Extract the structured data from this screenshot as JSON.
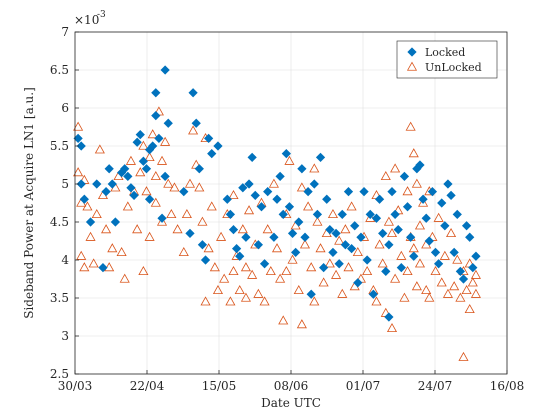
{
  "chart_data": {
    "type": "scatter",
    "title": "",
    "xlabel": "Date UTC",
    "ylabel": "Sideband Power at Acquire LN1 [a.u.]",
    "y_exponent_label": "×10",
    "y_exponent_power": "-3",
    "x_ticks": [
      "30/03",
      "22/04",
      "15/05",
      "08/06",
      "01/07",
      "24/07",
      "16/08"
    ],
    "y_ticks": [
      "2.5",
      "3",
      "3.5",
      "4",
      "4.5",
      "5",
      "5.5",
      "6",
      "6.5",
      "7"
    ],
    "xlim": [
      "2021-03-30",
      "2021-08-16"
    ],
    "ylim": [
      2.5,
      7
    ],
    "grid": true,
    "legend_position": "top-right",
    "series": [
      {
        "name": "Locked",
        "marker": "diamond",
        "color": "#0072BD",
        "points": [
          [
            "2021-03-31",
            5.6
          ],
          [
            "2021-04-01",
            5.5
          ],
          [
            "2021-04-01",
            5.0
          ],
          [
            "2021-04-02",
            4.8
          ],
          [
            "2021-04-04",
            4.5
          ],
          [
            "2021-04-06",
            5.0
          ],
          [
            "2021-04-08",
            3.9
          ],
          [
            "2021-04-09",
            4.9
          ],
          [
            "2021-04-10",
            5.2
          ],
          [
            "2021-04-11",
            5.0
          ],
          [
            "2021-04-12",
            4.5
          ],
          [
            "2021-04-14",
            5.15
          ],
          [
            "2021-04-15",
            5.2
          ],
          [
            "2021-04-16",
            5.1
          ],
          [
            "2021-04-17",
            4.95
          ],
          [
            "2021-04-18",
            4.85
          ],
          [
            "2021-04-19",
            5.55
          ],
          [
            "2021-04-20",
            5.65
          ],
          [
            "2021-04-21",
            5.3
          ],
          [
            "2021-04-22",
            5.2
          ],
          [
            "2021-04-23",
            4.8
          ],
          [
            "2021-04-23",
            5.45
          ],
          [
            "2021-04-24",
            5.5
          ],
          [
            "2021-04-25",
            5.9
          ],
          [
            "2021-04-25",
            6.2
          ],
          [
            "2021-04-26",
            5.6
          ],
          [
            "2021-04-27",
            4.55
          ],
          [
            "2021-04-28",
            6.5
          ],
          [
            "2021-04-28",
            5.1
          ],
          [
            "2021-04-29",
            5.8
          ],
          [
            "2021-05-04",
            4.9
          ],
          [
            "2021-05-06",
            4.35
          ],
          [
            "2021-05-07",
            6.2
          ],
          [
            "2021-05-08",
            5.8
          ],
          [
            "2021-05-09",
            5.2
          ],
          [
            "2021-05-10",
            4.2
          ],
          [
            "2021-05-11",
            4.0
          ],
          [
            "2021-05-12",
            5.6
          ],
          [
            "2021-05-13",
            5.4
          ],
          [
            "2021-05-15",
            5.5
          ],
          [
            "2021-05-18",
            4.8
          ],
          [
            "2021-05-19",
            4.6
          ],
          [
            "2021-05-20",
            4.4
          ],
          [
            "2021-05-21",
            4.15
          ],
          [
            "2021-05-22",
            4.05
          ],
          [
            "2021-05-23",
            4.95
          ],
          [
            "2021-05-24",
            4.3
          ],
          [
            "2021-05-25",
            5.0
          ],
          [
            "2021-05-26",
            5.35
          ],
          [
            "2021-05-27",
            4.85
          ],
          [
            "2021-05-28",
            4.2
          ],
          [
            "2021-05-29",
            4.7
          ],
          [
            "2021-05-30",
            3.95
          ],
          [
            "2021-05-31",
            4.9
          ],
          [
            "2021-06-02",
            4.3
          ],
          [
            "2021-06-03",
            4.8
          ],
          [
            "2021-06-04",
            5.1
          ],
          [
            "2021-06-05",
            4.6
          ],
          [
            "2021-06-06",
            5.4
          ],
          [
            "2021-06-07",
            4.7
          ],
          [
            "2021-06-08",
            4.35
          ],
          [
            "2021-06-09",
            4.1
          ],
          [
            "2021-06-10",
            4.5
          ],
          [
            "2021-06-11",
            5.2
          ],
          [
            "2021-06-12",
            4.3
          ],
          [
            "2021-06-13",
            4.9
          ],
          [
            "2021-06-14",
            3.55
          ],
          [
            "2021-06-15",
            5.0
          ],
          [
            "2021-06-16",
            4.6
          ],
          [
            "2021-06-17",
            5.35
          ],
          [
            "2021-06-18",
            3.9
          ],
          [
            "2021-06-19",
            4.8
          ],
          [
            "2021-06-20",
            4.4
          ],
          [
            "2021-06-21",
            4.1
          ],
          [
            "2021-06-22",
            4.35
          ],
          [
            "2021-06-23",
            3.95
          ],
          [
            "2021-06-24",
            4.6
          ],
          [
            "2021-06-25",
            4.2
          ],
          [
            "2021-06-26",
            4.9
          ],
          [
            "2021-06-27",
            4.15
          ],
          [
            "2021-06-28",
            4.45
          ],
          [
            "2021-06-29",
            3.7
          ],
          [
            "2021-06-30",
            4.3
          ],
          [
            "2021-07-01",
            4.9
          ],
          [
            "2021-07-02",
            4.0
          ],
          [
            "2021-07-03",
            4.6
          ],
          [
            "2021-07-04",
            3.55
          ],
          [
            "2021-07-05",
            4.55
          ],
          [
            "2021-07-06",
            4.8
          ],
          [
            "2021-07-07",
            4.35
          ],
          [
            "2021-07-08",
            3.85
          ],
          [
            "2021-07-09",
            4.2
          ],
          [
            "2021-07-09",
            3.25
          ],
          [
            "2021-07-10",
            4.9
          ],
          [
            "2021-07-11",
            4.6
          ],
          [
            "2021-07-12",
            4.4
          ],
          [
            "2021-07-13",
            3.9
          ],
          [
            "2021-07-14",
            5.1
          ],
          [
            "2021-07-15",
            4.7
          ],
          [
            "2021-07-16",
            4.3
          ],
          [
            "2021-07-17",
            4.05
          ],
          [
            "2021-07-18",
            5.2
          ],
          [
            "2021-07-19",
            5.25
          ],
          [
            "2021-07-20",
            4.8
          ],
          [
            "2021-07-21",
            4.55
          ],
          [
            "2021-07-22",
            4.25
          ],
          [
            "2021-07-23",
            4.9
          ],
          [
            "2021-07-24",
            4.1
          ],
          [
            "2021-07-25",
            3.95
          ],
          [
            "2021-07-26",
            4.75
          ],
          [
            "2021-07-27",
            4.45
          ],
          [
            "2021-07-28",
            5.0
          ],
          [
            "2021-07-29",
            4.85
          ],
          [
            "2021-07-30",
            4.1
          ],
          [
            "2021-07-31",
            4.6
          ],
          [
            "2021-08-01",
            3.85
          ],
          [
            "2021-08-02",
            3.75
          ],
          [
            "2021-08-03",
            4.45
          ],
          [
            "2021-08-04",
            4.3
          ],
          [
            "2021-08-05",
            3.9
          ],
          [
            "2021-08-06",
            4.05
          ]
        ]
      },
      {
        "name": "UnLocked",
        "marker": "triangle",
        "color": "#D95319",
        "points": [
          [
            "2021-03-31",
            5.75
          ],
          [
            "2021-03-31",
            5.15
          ],
          [
            "2021-04-01",
            4.75
          ],
          [
            "2021-04-01",
            4.05
          ],
          [
            "2021-04-02",
            5.05
          ],
          [
            "2021-04-02",
            3.9
          ],
          [
            "2021-04-03",
            4.7
          ],
          [
            "2021-04-04",
            4.3
          ],
          [
            "2021-04-05",
            3.95
          ],
          [
            "2021-04-06",
            4.6
          ],
          [
            "2021-04-07",
            5.45
          ],
          [
            "2021-04-08",
            4.85
          ],
          [
            "2021-04-09",
            4.4
          ],
          [
            "2021-04-10",
            3.9
          ],
          [
            "2021-04-11",
            4.15
          ],
          [
            "2021-04-12",
            4.95
          ],
          [
            "2021-04-13",
            5.1
          ],
          [
            "2021-04-14",
            4.1
          ],
          [
            "2021-04-15",
            3.75
          ],
          [
            "2021-04-16",
            4.7
          ],
          [
            "2021-04-17",
            5.3
          ],
          [
            "2021-04-18",
            4.9
          ],
          [
            "2021-04-19",
            4.4
          ],
          [
            "2021-04-20",
            5.15
          ],
          [
            "2021-04-21",
            5.5
          ],
          [
            "2021-04-21",
            3.85
          ],
          [
            "2021-04-22",
            4.9
          ],
          [
            "2021-04-23",
            5.35
          ],
          [
            "2021-04-23",
            4.3
          ],
          [
            "2021-04-24",
            5.65
          ],
          [
            "2021-04-25",
            5.1
          ],
          [
            "2021-04-25",
            4.75
          ],
          [
            "2021-04-26",
            5.95
          ],
          [
            "2021-04-27",
            5.3
          ],
          [
            "2021-04-27",
            4.5
          ],
          [
            "2021-04-28",
            5.55
          ],
          [
            "2021-04-29",
            5.0
          ],
          [
            "2021-04-30",
            4.6
          ],
          [
            "2021-05-01",
            4.95
          ],
          [
            "2021-05-02",
            4.4
          ],
          [
            "2021-05-04",
            4.1
          ],
          [
            "2021-05-05",
            4.6
          ],
          [
            "2021-05-06",
            5.0
          ],
          [
            "2021-05-07",
            5.7
          ],
          [
            "2021-05-08",
            5.25
          ],
          [
            "2021-05-09",
            4.95
          ],
          [
            "2021-05-10",
            4.5
          ],
          [
            "2021-05-11",
            5.6
          ],
          [
            "2021-05-11",
            3.45
          ],
          [
            "2021-05-12",
            4.15
          ],
          [
            "2021-05-13",
            4.7
          ],
          [
            "2021-05-14",
            3.9
          ],
          [
            "2021-05-15",
            3.6
          ],
          [
            "2021-05-16",
            4.3
          ],
          [
            "2021-05-17",
            3.75
          ],
          [
            "2021-05-18",
            4.6
          ],
          [
            "2021-05-19",
            3.45
          ],
          [
            "2021-05-20",
            4.85
          ],
          [
            "2021-05-20",
            3.85
          ],
          [
            "2021-05-21",
            4.05
          ],
          [
            "2021-05-22",
            3.6
          ],
          [
            "2021-05-23",
            4.4
          ],
          [
            "2021-05-24",
            3.5
          ],
          [
            "2021-05-24",
            3.9
          ],
          [
            "2021-05-25",
            4.65
          ],
          [
            "2021-05-26",
            3.8
          ],
          [
            "2021-05-27",
            4.2
          ],
          [
            "2021-05-28",
            3.55
          ],
          [
            "2021-05-29",
            4.75
          ],
          [
            "2021-05-30",
            3.45
          ],
          [
            "2021-05-31",
            4.4
          ],
          [
            "2021-06-01",
            3.85
          ],
          [
            "2021-06-02",
            5.0
          ],
          [
            "2021-06-03",
            4.15
          ],
          [
            "2021-06-04",
            3.75
          ],
          [
            "2021-06-05",
            3.2
          ],
          [
            "2021-06-06",
            4.6
          ],
          [
            "2021-06-06",
            3.85
          ],
          [
            "2021-06-07",
            5.3
          ],
          [
            "2021-06-08",
            4.0
          ],
          [
            "2021-06-09",
            4.45
          ],
          [
            "2021-06-10",
            3.6
          ],
          [
            "2021-06-11",
            4.95
          ],
          [
            "2021-06-11",
            3.15
          ],
          [
            "2021-06-12",
            4.2
          ],
          [
            "2021-06-13",
            4.7
          ],
          [
            "2021-06-14",
            3.9
          ],
          [
            "2021-06-15",
            5.2
          ],
          [
            "2021-06-15",
            3.45
          ],
          [
            "2021-06-16",
            4.5
          ],
          [
            "2021-06-17",
            4.15
          ],
          [
            "2021-06-18",
            3.7
          ],
          [
            "2021-06-19",
            4.35
          ],
          [
            "2021-06-20",
            3.95
          ],
          [
            "2021-06-21",
            4.6
          ],
          [
            "2021-06-22",
            3.8
          ],
          [
            "2021-06-23",
            4.25
          ],
          [
            "2021-06-24",
            3.55
          ],
          [
            "2021-06-25",
            4.4
          ],
          [
            "2021-06-26",
            3.9
          ],
          [
            "2021-06-27",
            4.7
          ],
          [
            "2021-06-28",
            3.65
          ],
          [
            "2021-06-29",
            4.1
          ],
          [
            "2021-06-30",
            3.75
          ],
          [
            "2021-07-01",
            4.3
          ],
          [
            "2021-07-02",
            3.85
          ],
          [
            "2021-07-03",
            4.55
          ],
          [
            "2021-07-04",
            3.6
          ],
          [
            "2021-07-05",
            4.85
          ],
          [
            "2021-07-05",
            3.45
          ],
          [
            "2021-07-06",
            4.2
          ],
          [
            "2021-07-07",
            3.95
          ],
          [
            "2021-07-08",
            5.1
          ],
          [
            "2021-07-08",
            3.3
          ],
          [
            "2021-07-09",
            4.5
          ],
          [
            "2021-07-10",
            3.1
          ],
          [
            "2021-07-10",
            4.35
          ],
          [
            "2021-07-11",
            5.2
          ],
          [
            "2021-07-11",
            3.75
          ],
          [
            "2021-07-12",
            4.65
          ],
          [
            "2021-07-13",
            4.05
          ],
          [
            "2021-07-14",
            3.5
          ],
          [
            "2021-07-15",
            4.9
          ],
          [
            "2021-07-15",
            3.85
          ],
          [
            "2021-07-16",
            4.3
          ],
          [
            "2021-07-16",
            5.75
          ],
          [
            "2021-07-17",
            5.4
          ],
          [
            "2021-07-17",
            4.15
          ],
          [
            "2021-07-18",
            3.65
          ],
          [
            "2021-07-18",
            5.0
          ],
          [
            "2021-07-19",
            4.45
          ],
          [
            "2021-07-19",
            3.95
          ],
          [
            "2021-07-20",
            4.75
          ],
          [
            "2021-07-21",
            3.6
          ],
          [
            "2021-07-21",
            4.2
          ],
          [
            "2021-07-22",
            4.9
          ],
          [
            "2021-07-22",
            3.5
          ],
          [
            "2021-07-23",
            4.3
          ],
          [
            "2021-07-24",
            3.85
          ],
          [
            "2021-07-25",
            4.55
          ],
          [
            "2021-07-26",
            3.7
          ],
          [
            "2021-07-27",
            4.05
          ],
          [
            "2021-07-28",
            3.55
          ],
          [
            "2021-07-29",
            4.35
          ],
          [
            "2021-07-30",
            3.65
          ],
          [
            "2021-07-31",
            4.0
          ],
          [
            "2021-08-01",
            3.5
          ],
          [
            "2021-08-02",
            3.85
          ],
          [
            "2021-08-02",
            2.72
          ],
          [
            "2021-08-03",
            3.6
          ],
          [
            "2021-08-04",
            3.95
          ],
          [
            "2021-08-04",
            3.35
          ],
          [
            "2021-08-05",
            3.7
          ],
          [
            "2021-08-06",
            3.55
          ],
          [
            "2021-08-06",
            3.8
          ]
        ]
      }
    ]
  }
}
